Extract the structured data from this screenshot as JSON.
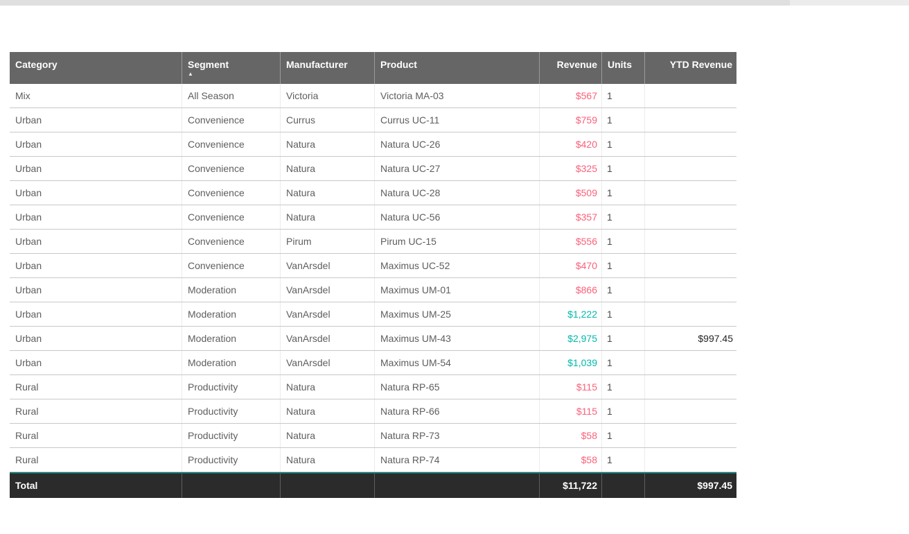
{
  "page": {
    "background": "#ffffff",
    "top_strip_color": "#dfdfdf",
    "top_strip_right_color": "#ececec"
  },
  "table": {
    "sort_icon": "▲",
    "sorted_column": "Segment",
    "sort_direction": "ascending",
    "colors": {
      "header_bg": "#666666",
      "header_text": "#ffffff",
      "body_text": "#5e5e5e",
      "revenue_low": "#fb607a",
      "revenue_high": "#01b8aa",
      "row_divider": "#c8c8c8",
      "total_bg": "#2b2b2b",
      "total_top_border": "#0d6e66",
      "total_text": "#ffffff"
    },
    "columns": [
      {
        "label": "Category",
        "align": "left"
      },
      {
        "label": "Segment",
        "align": "left",
        "sorted": true
      },
      {
        "label": "Manufacturer",
        "align": "left"
      },
      {
        "label": "Product",
        "align": "left"
      },
      {
        "label": "Revenue",
        "align": "right"
      },
      {
        "label": "Units",
        "align": "left"
      },
      {
        "label": "YTD Revenue",
        "align": "right"
      }
    ],
    "rows": [
      {
        "category": "Mix",
        "segment": "All Season",
        "manufacturer": "Victoria",
        "product": "Victoria MA-03",
        "revenue": "$567",
        "revenue_color": "#fb607a",
        "units": "1",
        "ytd_revenue": ""
      },
      {
        "category": "Urban",
        "segment": "Convenience",
        "manufacturer": "Currus",
        "product": "Currus UC-11",
        "revenue": "$759",
        "revenue_color": "#fb607a",
        "units": "1",
        "ytd_revenue": ""
      },
      {
        "category": "Urban",
        "segment": "Convenience",
        "manufacturer": "Natura",
        "product": "Natura UC-26",
        "revenue": "$420",
        "revenue_color": "#fb607a",
        "units": "1",
        "ytd_revenue": ""
      },
      {
        "category": "Urban",
        "segment": "Convenience",
        "manufacturer": "Natura",
        "product": "Natura UC-27",
        "revenue": "$325",
        "revenue_color": "#fb607a",
        "units": "1",
        "ytd_revenue": ""
      },
      {
        "category": "Urban",
        "segment": "Convenience",
        "manufacturer": "Natura",
        "product": "Natura UC-28",
        "revenue": "$509",
        "revenue_color": "#fb607a",
        "units": "1",
        "ytd_revenue": ""
      },
      {
        "category": "Urban",
        "segment": "Convenience",
        "manufacturer": "Natura",
        "product": "Natura UC-56",
        "revenue": "$357",
        "revenue_color": "#fb607a",
        "units": "1",
        "ytd_revenue": ""
      },
      {
        "category": "Urban",
        "segment": "Convenience",
        "manufacturer": "Pirum",
        "product": "Pirum UC-15",
        "revenue": "$556",
        "revenue_color": "#fb607a",
        "units": "1",
        "ytd_revenue": ""
      },
      {
        "category": "Urban",
        "segment": "Convenience",
        "manufacturer": "VanArsdel",
        "product": "Maximus UC-52",
        "revenue": "$470",
        "revenue_color": "#fb607a",
        "units": "1",
        "ytd_revenue": ""
      },
      {
        "category": "Urban",
        "segment": "Moderation",
        "manufacturer": "VanArsdel",
        "product": "Maximus UM-01",
        "revenue": "$866",
        "revenue_color": "#fb607a",
        "units": "1",
        "ytd_revenue": ""
      },
      {
        "category": "Urban",
        "segment": "Moderation",
        "manufacturer": "VanArsdel",
        "product": "Maximus UM-25",
        "revenue": "$1,222",
        "revenue_color": "#01b8aa",
        "units": "1",
        "ytd_revenue": ""
      },
      {
        "category": "Urban",
        "segment": "Moderation",
        "manufacturer": "VanArsdel",
        "product": "Maximus UM-43",
        "revenue": "$2,975",
        "revenue_color": "#01b8aa",
        "units": "1",
        "ytd_revenue": "$997.45"
      },
      {
        "category": "Urban",
        "segment": "Moderation",
        "manufacturer": "VanArsdel",
        "product": "Maximus UM-54",
        "revenue": "$1,039",
        "revenue_color": "#01b8aa",
        "units": "1",
        "ytd_revenue": ""
      },
      {
        "category": "Rural",
        "segment": "Productivity",
        "manufacturer": "Natura",
        "product": "Natura RP-65",
        "revenue": "$115",
        "revenue_color": "#fb607a",
        "units": "1",
        "ytd_revenue": ""
      },
      {
        "category": "Rural",
        "segment": "Productivity",
        "manufacturer": "Natura",
        "product": "Natura RP-66",
        "revenue": "$115",
        "revenue_color": "#fb607a",
        "units": "1",
        "ytd_revenue": ""
      },
      {
        "category": "Rural",
        "segment": "Productivity",
        "manufacturer": "Natura",
        "product": "Natura RP-73",
        "revenue": "$58",
        "revenue_color": "#fb607a",
        "units": "1",
        "ytd_revenue": ""
      },
      {
        "category": "Rural",
        "segment": "Productivity",
        "manufacturer": "Natura",
        "product": "Natura RP-74",
        "revenue": "$58",
        "revenue_color": "#fb607a",
        "units": "1",
        "ytd_revenue": ""
      }
    ],
    "total": {
      "label": "Total",
      "revenue": "$11,722",
      "units": "",
      "ytd_revenue": "$997.45"
    }
  }
}
